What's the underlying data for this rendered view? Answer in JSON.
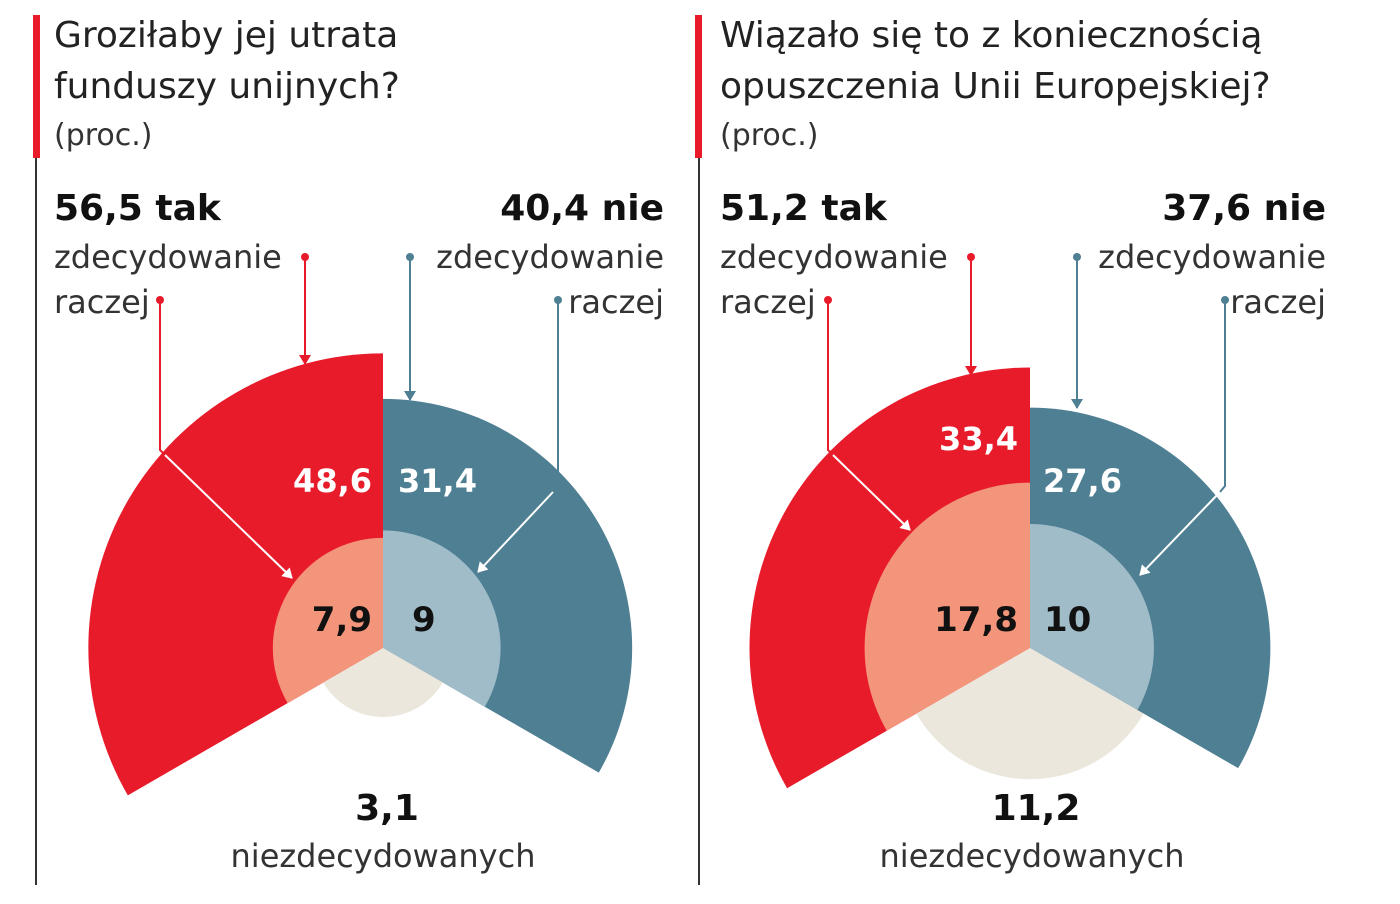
{
  "colors": {
    "red": "#e81b2a",
    "blue": "#4e7f93",
    "light_red": "#f3957b",
    "light_blue": "#a0bcc8",
    "beige": "#ebe7dc",
    "accent_bar": "#e81b2a",
    "divider": "#333333"
  },
  "chart_data": [
    {
      "type": "pie",
      "title": "Groziłaby jej utrata funduszy unijnych?",
      "title_lines": [
        "Groziłaby jej utrata",
        "funduszy unijnych?"
      ],
      "unit": "(proc.)",
      "yes_total": "56,5 tak",
      "no_total": "40,4 nie",
      "labels": {
        "yes_definitely": "zdecydowanie",
        "yes_rather": "raczej",
        "no_definitely": "zdecydowanie",
        "no_rather": "raczej",
        "undecided": "niezdecydowanych"
      },
      "series": [
        {
          "name": "tak zdecydowanie",
          "value": 48.6,
          "text": "48,6"
        },
        {
          "name": "tak raczej",
          "value": 7.9,
          "text": "7,9"
        },
        {
          "name": "nie zdecydowanie",
          "value": 31.4,
          "text": "31,4"
        },
        {
          "name": "nie raczej",
          "value": 9,
          "text": "9"
        },
        {
          "name": "niezdecydowanych",
          "value": 3.1,
          "text": "3,1"
        }
      ]
    },
    {
      "type": "pie",
      "title": "Wiązało się to z koniecznością opuszczenia Unii Europejskiej?",
      "title_lines": [
        "Wiązało się to z koniecznością",
        "opuszczenia Unii Europejskiej?"
      ],
      "unit": "(proc.)",
      "yes_total": "51,2 tak",
      "no_total": "37,6 nie",
      "labels": {
        "yes_definitely": "zdecydowanie",
        "yes_rather": "raczej",
        "no_definitely": "zdecydowanie",
        "no_rather": "raczej",
        "undecided": "niezdecydowanych"
      },
      "series": [
        {
          "name": "tak zdecydowanie",
          "value": 33.4,
          "text": "33,4"
        },
        {
          "name": "tak raczej",
          "value": 17.8,
          "text": "17,8"
        },
        {
          "name": "nie zdecydowanie",
          "value": 27.6,
          "text": "27,6"
        },
        {
          "name": "nie raczej",
          "value": 10,
          "text": "10"
        },
        {
          "name": "niezdecydowanych",
          "value": 11.2,
          "text": "11,2"
        }
      ]
    }
  ]
}
